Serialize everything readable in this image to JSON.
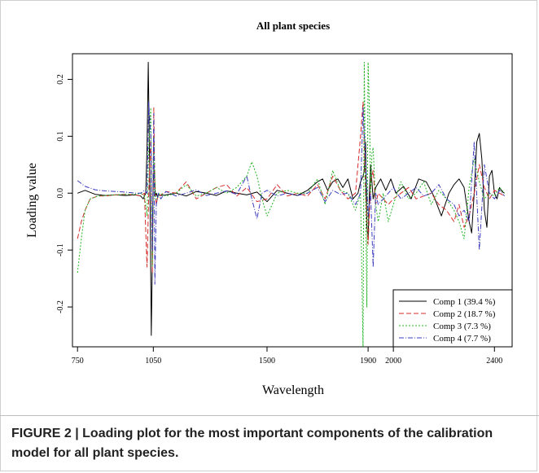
{
  "caption": "FIGURE 2 | Loading plot for the most important components of the calibration model for all plant species.",
  "chart_data": {
    "type": "line",
    "title": "All plant species",
    "xlabel": "Wavelength",
    "ylabel": "Loading value",
    "xlim": [
      730,
      2470
    ],
    "ylim": [
      -0.27,
      0.245
    ],
    "x_ticks": [
      750,
      1050,
      1500,
      1900,
      2000,
      2400
    ],
    "y_ticks": [
      -0.2,
      -0.1,
      0.0,
      0.1,
      0.2
    ],
    "y_tick_labels": [
      "-0.2",
      "-0.1",
      "0.0",
      "0.1",
      "0.2"
    ],
    "legend_position": "bottom-right",
    "series": [
      {
        "name": "Comp 1 (39.4 %)",
        "color": "#000000",
        "dash": "",
        "x": [
          750,
          780,
          820,
          860,
          900,
          940,
          980,
          1000,
          1010,
          1020,
          1025,
          1030,
          1034,
          1038,
          1042,
          1046,
          1050,
          1054,
          1058,
          1062,
          1066,
          1070,
          1080,
          1100,
          1140,
          1180,
          1220,
          1260,
          1300,
          1340,
          1380,
          1420,
          1460,
          1500,
          1540,
          1580,
          1620,
          1660,
          1700,
          1720,
          1740,
          1760,
          1780,
          1800,
          1820,
          1840,
          1860,
          1870,
          1880,
          1885,
          1890,
          1895,
          1900,
          1905,
          1910,
          1915,
          1920,
          1930,
          1950,
          1970,
          1990,
          2010,
          2040,
          2070,
          2100,
          2130,
          2160,
          2190,
          2220,
          2240,
          2260,
          2280,
          2300,
          2310,
          2320,
          2330,
          2340,
          2350,
          2360,
          2370,
          2380,
          2390,
          2400,
          2410,
          2420,
          2430,
          2440
        ],
        "y": [
          0.0,
          0.005,
          -0.002,
          -0.004,
          -0.003,
          -0.004,
          -0.003,
          -0.005,
          -0.01,
          0.0,
          0.08,
          0.23,
          0.1,
          -0.05,
          -0.25,
          -0.12,
          0.02,
          0.04,
          -0.005,
          0.0,
          -0.006,
          -0.003,
          -0.004,
          -0.003,
          0.0,
          -0.005,
          0.003,
          0.0,
          -0.004,
          0.004,
          0.0,
          -0.003,
          0.002,
          -0.015,
          0.005,
          0.0,
          -0.004,
          0.005,
          0.02,
          0.025,
          0.005,
          0.02,
          0.025,
          0.01,
          0.025,
          -0.01,
          0.0,
          0.02,
          0.03,
          0.04,
          0.09,
          -0.06,
          -0.08,
          0.0,
          0.05,
          0.02,
          -0.01,
          0.01,
          0.025,
          0.005,
          0.025,
          0.0,
          0.012,
          -0.01,
          0.025,
          0.02,
          -0.005,
          -0.04,
          0.0,
          0.015,
          0.025,
          0.01,
          -0.05,
          -0.07,
          0.0,
          0.09,
          0.105,
          0.06,
          -0.03,
          -0.06,
          0.03,
          0.04,
          0.0,
          -0.01,
          0.01,
          0.003,
          0.0
        ]
      },
      {
        "name": "Comp 2 (18.7 %)",
        "color": "#d42a2a",
        "dash": "6,3",
        "x": [
          750,
          765,
          780,
          800,
          830,
          860,
          900,
          940,
          980,
          1000,
          1015,
          1025,
          1032,
          1040,
          1046,
          1052,
          1056,
          1062,
          1068,
          1080,
          1100,
          1140,
          1180,
          1220,
          1260,
          1300,
          1340,
          1380,
          1420,
          1460,
          1500,
          1540,
          1580,
          1620,
          1660,
          1700,
          1730,
          1760,
          1790,
          1820,
          1850,
          1870,
          1880,
          1890,
          1900,
          1910,
          1920,
          1930,
          1940,
          1960,
          1980,
          2000,
          2030,
          2060,
          2090,
          2120,
          2150,
          2180,
          2210,
          2240,
          2260,
          2280,
          2300,
          2320,
          2340,
          2360,
          2380,
          2400,
          2420,
          2440
        ],
        "y": [
          -0.08,
          -0.05,
          -0.03,
          -0.01,
          -0.005,
          -0.005,
          -0.003,
          -0.002,
          -0.003,
          -0.005,
          0.0,
          -0.13,
          0.0,
          0.1,
          -0.14,
          0.15,
          0.0,
          -0.02,
          -0.005,
          -0.003,
          0.003,
          0.0,
          0.02,
          -0.01,
          0.0,
          0.01,
          0.015,
          -0.005,
          0.01,
          -0.015,
          -0.01,
          0.015,
          -0.005,
          0.0,
          -0.005,
          0.015,
          -0.01,
          0.03,
          0.005,
          -0.01,
          0.0,
          0.1,
          0.16,
          0.0,
          -0.09,
          0.02,
          0.04,
          -0.02,
          0.0,
          -0.01,
          -0.02,
          -0.01,
          0.0,
          0.01,
          -0.01,
          -0.005,
          0.0,
          -0.02,
          -0.03,
          -0.05,
          -0.02,
          -0.06,
          -0.04,
          0.0,
          0.05,
          0.01,
          -0.01,
          0.005,
          0.0,
          -0.005
        ]
      },
      {
        "name": "Comp 3 (7.3 %)",
        "color": "#21b321",
        "dash": "2,2",
        "x": [
          750,
          765,
          780,
          800,
          830,
          860,
          900,
          940,
          980,
          1000,
          1015,
          1025,
          1032,
          1040,
          1046,
          1052,
          1058,
          1065,
          1075,
          1100,
          1140,
          1180,
          1220,
          1260,
          1300,
          1340,
          1380,
          1420,
          1440,
          1460,
          1480,
          1500,
          1540,
          1580,
          1620,
          1660,
          1700,
          1730,
          1760,
          1790,
          1820,
          1850,
          1870,
          1880,
          1885,
          1890,
          1895,
          1900,
          1905,
          1910,
          1915,
          1920,
          1930,
          1940,
          1960,
          1980,
          2000,
          2030,
          2060,
          2090,
          2120,
          2150,
          2180,
          2210,
          2240,
          2260,
          2280,
          2300,
          2320,
          2340,
          2360,
          2380,
          2400,
          2420,
          2440
        ],
        "y": [
          -0.14,
          -0.08,
          -0.03,
          -0.01,
          -0.005,
          -0.004,
          -0.003,
          -0.002,
          -0.002,
          0.0,
          -0.005,
          -0.04,
          0.08,
          0.15,
          -0.13,
          0.1,
          -0.01,
          -0.01,
          0.0,
          -0.005,
          0.0,
          0.015,
          -0.005,
          0.0,
          0.01,
          0.0,
          0.01,
          0.03,
          0.055,
          0.03,
          -0.01,
          -0.04,
          0.0,
          0.005,
          0.0,
          0.0,
          0.025,
          -0.02,
          0.04,
          0.005,
          0.0,
          -0.03,
          0.0,
          -0.27,
          0.23,
          0.0,
          -0.2,
          0.23,
          0.15,
          0.0,
          0.07,
          0.08,
          -0.02,
          -0.05,
          0.0,
          -0.05,
          -0.02,
          0.02,
          -0.01,
          0.0,
          0.02,
          -0.02,
          0.005,
          -0.01,
          -0.03,
          -0.05,
          -0.08,
          0.01,
          0.06,
          0.02,
          -0.01,
          0.0,
          -0.005,
          0.01,
          0.0
        ]
      },
      {
        "name": "Comp 4 (7.7 %)",
        "color": "#3b3bbf",
        "dash": "6,2,1,2",
        "x": [
          750,
          780,
          820,
          860,
          900,
          940,
          980,
          1000,
          1015,
          1025,
          1032,
          1040,
          1046,
          1052,
          1056,
          1062,
          1070,
          1080,
          1100,
          1140,
          1180,
          1220,
          1260,
          1300,
          1340,
          1380,
          1420,
          1440,
          1460,
          1480,
          1500,
          1540,
          1580,
          1620,
          1660,
          1700,
          1730,
          1760,
          1790,
          1820,
          1850,
          1870,
          1880,
          1890,
          1900,
          1910,
          1920,
          1930,
          1940,
          1960,
          1980,
          2000,
          2030,
          2060,
          2090,
          2120,
          2150,
          2180,
          2210,
          2240,
          2260,
          2280,
          2300,
          2320,
          2340,
          2360,
          2380,
          2400,
          2420,
          2440
        ],
        "y": [
          0.022,
          0.012,
          0.006,
          0.004,
          0.003,
          0.002,
          0.0,
          0.0,
          0.005,
          0.0,
          0.16,
          0.1,
          -0.1,
          0.14,
          -0.16,
          -0.02,
          0.0,
          -0.01,
          0.003,
          -0.005,
          0.0,
          0.006,
          -0.004,
          0.0,
          0.004,
          -0.002,
          0.03,
          -0.01,
          -0.045,
          0.0,
          0.005,
          -0.005,
          0.0,
          -0.004,
          0.0,
          0.01,
          -0.015,
          0.005,
          -0.002,
          0.0,
          -0.02,
          0.0,
          0.15,
          0.06,
          -0.04,
          0.0,
          -0.13,
          0.0,
          -0.02,
          -0.01,
          0.0,
          0.01,
          -0.01,
          0.0,
          0.01,
          -0.005,
          0.0,
          0.015,
          -0.01,
          -0.02,
          -0.04,
          -0.03,
          -0.05,
          0.09,
          -0.1,
          0.05,
          0.0,
          -0.01,
          0.005,
          -0.005
        ]
      }
    ]
  }
}
